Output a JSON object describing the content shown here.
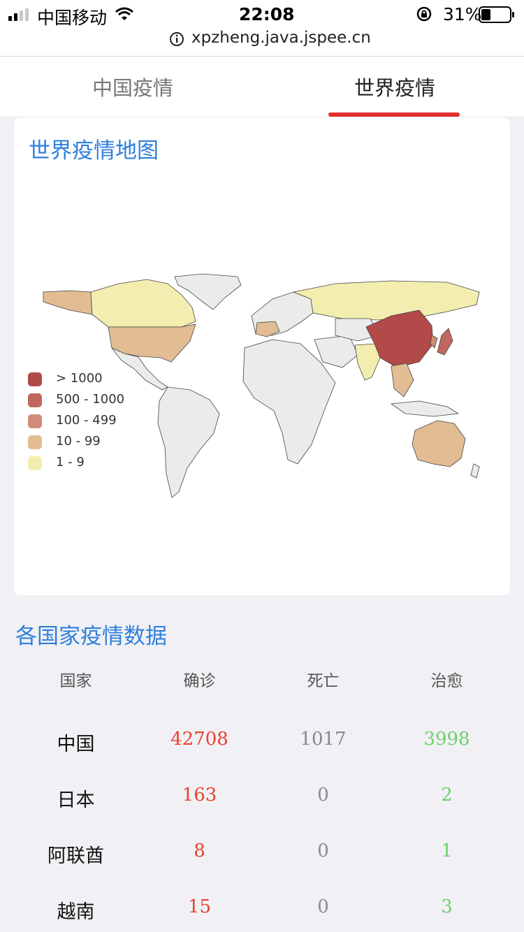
{
  "status": {
    "carrier": "中国移动",
    "time": "22:08",
    "battery": "31%"
  },
  "browser": {
    "url": "xpzheng.java.jspee.cn"
  },
  "tabs": [
    {
      "label": "中国疫情",
      "active": false
    },
    {
      "label": "世界疫情",
      "active": true
    }
  ],
  "map": {
    "title": "世界疫情地图",
    "legend": [
      {
        "label": "> 1000",
        "color": "#b24a4a"
      },
      {
        "label": "500 - 1000",
        "color": "#c0675f"
      },
      {
        "label": "100 - 499",
        "color": "#d08c78"
      },
      {
        "label": "10 - 99",
        "color": "#e2bd93"
      },
      {
        "label": "1 - 9",
        "color": "#f3eeb0"
      }
    ]
  },
  "table": {
    "title": "各国家疫情数据",
    "headers": [
      "国家",
      "确诊",
      "死亡",
      "治愈"
    ],
    "rows": [
      {
        "country": "中国",
        "confirmed": "42708",
        "deaths": "1017",
        "cured": "3998"
      },
      {
        "country": "日本",
        "confirmed": "163",
        "deaths": "0",
        "cured": "2"
      },
      {
        "country": "阿联酋",
        "confirmed": "8",
        "deaths": "0",
        "cured": "1"
      },
      {
        "country": "越南",
        "confirmed": "15",
        "deaths": "0",
        "cured": "3"
      }
    ]
  },
  "colors": {
    "accent_blue": "#2f7fde",
    "tab_red": "#e02f2f",
    "confirmed_red": "#e8412f",
    "deaths_gray": "#8a8a8a",
    "cured_green": "#6cd06c"
  }
}
